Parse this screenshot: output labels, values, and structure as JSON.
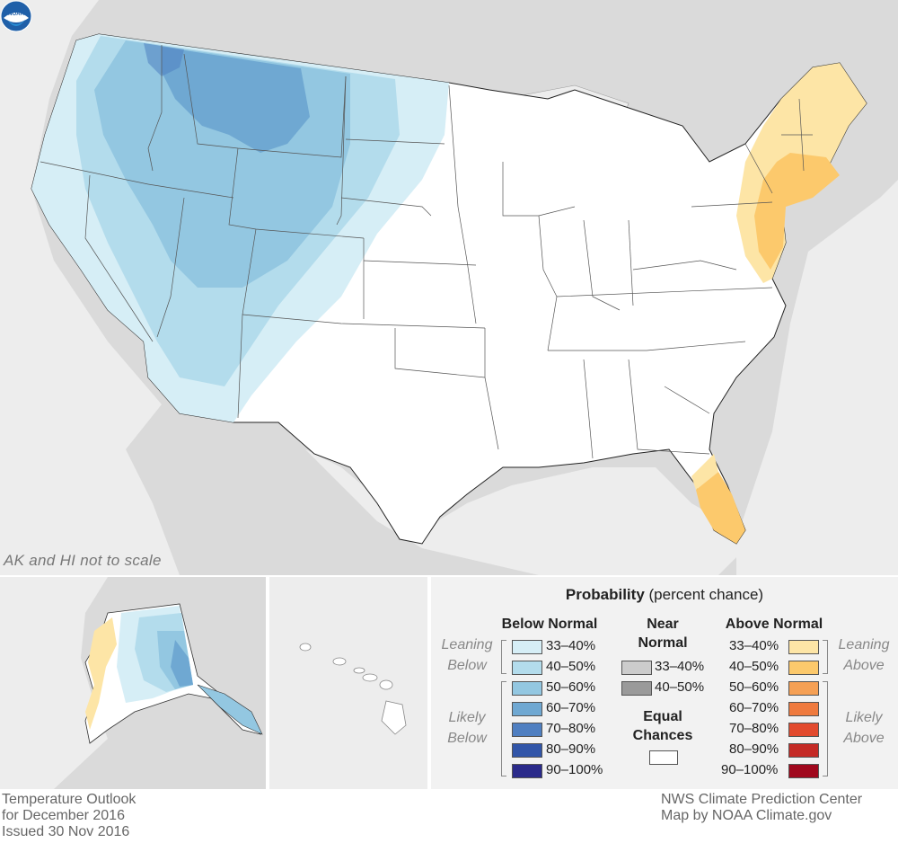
{
  "map": {
    "scale_note": "AK and HI not to scale",
    "logo_icon": "noaa-logo"
  },
  "colors": {
    "background_land": "#dadada",
    "water": "#ededed",
    "below": [
      "#d6eef6",
      "#b3dcec",
      "#93c7e1",
      "#6fa8d2",
      "#4f7fc1",
      "#3155a8",
      "#2a2a8a"
    ],
    "near": [
      "#cccccc",
      "#9a9a9a"
    ],
    "above": [
      "#fde5a6",
      "#fcc96c",
      "#f5a055",
      "#ef7a3e",
      "#e24a2e",
      "#c42a26",
      "#a0081d"
    ]
  },
  "legend": {
    "title_bold": "Probability",
    "title_rest": " (percent chance)",
    "below_header": "Below Normal",
    "near_header": "Near Normal",
    "above_header": "Above Normal",
    "equal_header": "Equal Chances",
    "leaning_below": "Leaning Below",
    "likely_below": "Likely Below",
    "leaning_above": "Leaning Above",
    "likely_above": "Likely Above",
    "ranges": [
      "33–40%",
      "40–50%",
      "50–60%",
      "60–70%",
      "70–80%",
      "80–90%",
      "90–100%"
    ],
    "near_ranges": [
      "33–40%",
      "40–50%"
    ]
  },
  "footer": {
    "left_line1": "Temperature Outlook",
    "left_line2": "for December 2016",
    "left_line3": "Issued 30 Nov 2016",
    "right_line1": "NWS Climate Prediction Center",
    "right_line2": "Map by NOAA Climate.gov"
  }
}
